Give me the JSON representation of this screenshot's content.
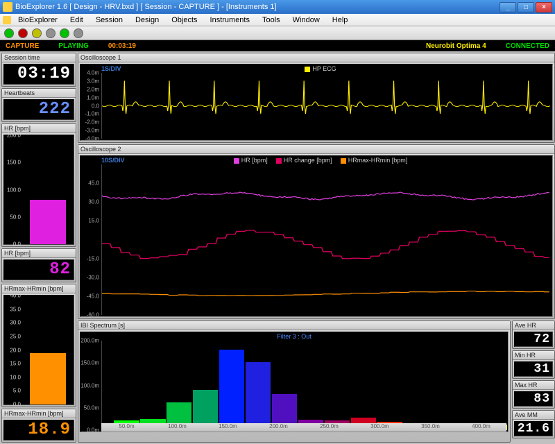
{
  "window": {
    "title": "BioExplorer 1.6  [ Design - HRV.bxd ] [ Session - CAPTURE ] - [Instruments 1]",
    "min": "_",
    "max": "□",
    "close": "×"
  },
  "menu": [
    "BioExplorer",
    "Edit",
    "Session",
    "Design",
    "Objects",
    "Instruments",
    "Tools",
    "Window",
    "Help"
  ],
  "toolbar_colors": [
    "#00c000",
    "#c00000",
    "#c0c000",
    "#909090",
    "#00c000",
    "#909090"
  ],
  "status": {
    "capture": {
      "text": "CAPTURE",
      "color": "#ff9000"
    },
    "playing": {
      "text": "PLAYING",
      "color": "#00e000"
    },
    "time": {
      "text": "00:03:19",
      "color": "#ff9000"
    },
    "device": {
      "text": "Neurobit Optima 4",
      "color": "#ffee00"
    },
    "conn": {
      "text": "CONNECTED",
      "color": "#00e000"
    }
  },
  "left": {
    "session_time": {
      "label": "Session time",
      "value": "03:19",
      "color": "#ffffff"
    },
    "heartbeats": {
      "label": "Heartbeats",
      "value": "222",
      "color": "#6890ff"
    },
    "hr_bar": {
      "label": "HR [bpm]",
      "ticks": [
        "200.0",
        "150.0",
        "100.0",
        "50.0",
        "0.0"
      ],
      "ylim": [
        0,
        200
      ],
      "value": 82,
      "bar_color": "#e020e0"
    },
    "hr_val": {
      "label": "HR [bpm]",
      "value": "82",
      "color": "#e020e0"
    },
    "range_bar": {
      "label": "HRmax-HRmin [bpm]",
      "ticks": [
        "40.0",
        "35.0",
        "30.0",
        "25.0",
        "20.0",
        "15.0",
        "10.0",
        "5.0",
        "0.0"
      ],
      "ylim": [
        0,
        40
      ],
      "value": 18.9,
      "bar_color": "#ff9000"
    },
    "range_val": {
      "label": "HRmax-HRmin [bpm]",
      "value": "18.9",
      "color": "#ff9000"
    }
  },
  "osc1": {
    "title": "Oscilloscope 1",
    "timebase": "1S/DIV",
    "legend": [
      {
        "name": "HP ECG",
        "color": "#ffee00"
      }
    ],
    "yticks": [
      "4.0m",
      "3.0m",
      "2.0m",
      "1.0m",
      "0.0",
      "-1.0m",
      "-2.0m",
      "-3.0m",
      "-4.0m"
    ],
    "line_color": "#ffee00",
    "grid_color": "#1a1a1a"
  },
  "osc2": {
    "title": "Oscilloscope 2",
    "timebase": "10S/DIV",
    "legend": [
      {
        "name": "HR [bpm]",
        "color": "#e040e0"
      },
      {
        "name": "HR change [bpm]",
        "color": "#e00060"
      },
      {
        "name": "HRmax-HRmin [bpm]",
        "color": "#ff9000"
      }
    ],
    "yticks": [
      "",
      "45.0",
      "30.0",
      "15.0",
      "",
      "-15.0",
      "-30.0",
      "-45.0",
      "-60.0"
    ],
    "grid_color": "#1a1a1a"
  },
  "spectrum": {
    "title": "IBI Spectrum [s]",
    "subtitle": "Filter 3 : Out",
    "subtitle_color": "#4a88ff",
    "yticks": [
      "200.0m",
      "150.0m",
      "100.0m",
      "50.0m",
      "0.0m"
    ],
    "ylim": [
      0,
      200
    ],
    "xticks": [
      "50.0m",
      "100.0m",
      "150.0m",
      "200.0m",
      "250.0m",
      "300.0m",
      "350.0m",
      "400.0m"
    ],
    "bars": [
      {
        "x": 0.03,
        "h": 22,
        "c": "#00ff00"
      },
      {
        "x": 0.095,
        "h": 25,
        "c": "#00e020"
      },
      {
        "x": 0.16,
        "h": 62,
        "c": "#00c040"
      },
      {
        "x": 0.225,
        "h": 90,
        "c": "#00a060"
      },
      {
        "x": 0.29,
        "h": 180,
        "c": "#0020ff"
      },
      {
        "x": 0.355,
        "h": 152,
        "c": "#2020e0"
      },
      {
        "x": 0.42,
        "h": 80,
        "c": "#5010c0"
      },
      {
        "x": 0.485,
        "h": 24,
        "c": "#8000a0"
      },
      {
        "x": 0.55,
        "h": 22,
        "c": "#a00060"
      },
      {
        "x": 0.615,
        "h": 28,
        "c": "#d00020"
      },
      {
        "x": 0.68,
        "h": 18,
        "c": "#ff3000"
      },
      {
        "x": 0.745,
        "h": 14,
        "c": "#ff7000"
      },
      {
        "x": 0.81,
        "h": 12,
        "c": "#ffb000"
      },
      {
        "x": 0.875,
        "h": 10,
        "c": "#ffe000"
      },
      {
        "x": 0.94,
        "h": 12,
        "c": "#ffff40"
      }
    ],
    "bar_width": 0.062
  },
  "right": {
    "ave_hr": {
      "label": "Ave HR",
      "value": "72"
    },
    "min_hr": {
      "label": "Min HR",
      "value": "31"
    },
    "max_hr": {
      "label": "Max HR",
      "value": "83"
    },
    "ave_mm": {
      "label": "Ave MM",
      "value": "21.6"
    }
  }
}
